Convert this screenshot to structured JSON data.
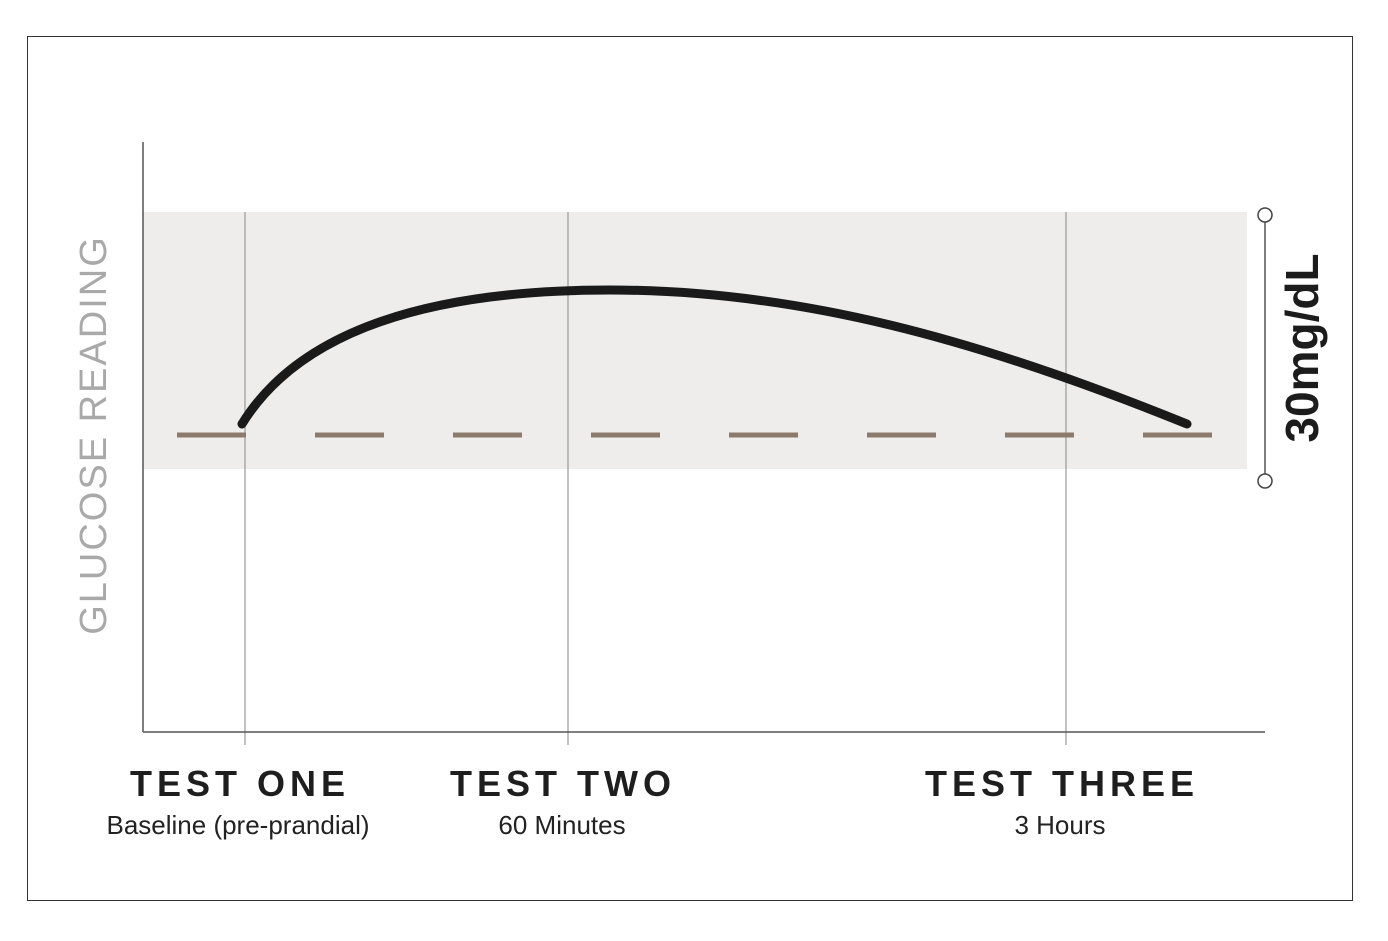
{
  "y_axis_label": "GLUCOSE READING",
  "range_label": "30mg/dL",
  "tests": [
    {
      "title": "TEST ONE",
      "subtitle": "Baseline (pre-prandial)"
    },
    {
      "title": "TEST TWO",
      "subtitle": "60 Minutes"
    },
    {
      "title": "TEST THREE",
      "subtitle": "3 Hours"
    }
  ],
  "colors": {
    "band": "#eeedeb",
    "curve": "#1a1a1a",
    "baseline_dash": "#8c7b6d",
    "gridline": "#9a9a9a",
    "axis": "#555555",
    "frame": "#333333"
  }
}
